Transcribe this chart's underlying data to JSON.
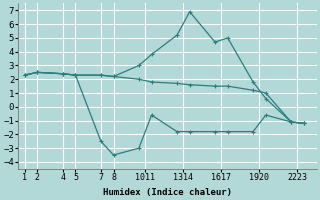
{
  "background_color": "#b2d8d8",
  "grid_color": "#ffffff",
  "line_color": "#2e7d7d",
  "xlabel": "Humidex (Indice chaleur)",
  "ylim": [
    -4.5,
    7.5
  ],
  "xlim": [
    0.5,
    24.0
  ],
  "yticks": [
    -4,
    -3,
    -2,
    -1,
    0,
    1,
    2,
    3,
    4,
    5,
    6,
    7
  ],
  "xtick_positions": [
    1,
    2,
    4,
    5,
    7,
    8,
    10.5,
    13.5,
    16.5,
    19.5,
    22.5
  ],
  "xtick_labels": [
    "1",
    "2",
    "4",
    "5",
    "7",
    "8",
    "1011",
    "1314",
    "1617",
    "1920",
    "2223"
  ],
  "line1_x": [
    1,
    2,
    4,
    5,
    7,
    8,
    10,
    11,
    13,
    14,
    16,
    17,
    19,
    20,
    22,
    23
  ],
  "line1_y": [
    2.3,
    2.5,
    2.4,
    2.3,
    2.3,
    2.2,
    2.0,
    1.8,
    1.7,
    1.6,
    1.5,
    1.5,
    1.2,
    1.0,
    -1.1,
    -1.2
  ],
  "line2_x": [
    1,
    2,
    4,
    5,
    7,
    8,
    10,
    11,
    13,
    14,
    16,
    17,
    19,
    20,
    22,
    23
  ],
  "line2_y": [
    2.3,
    2.5,
    2.4,
    2.3,
    2.3,
    2.2,
    3.0,
    3.8,
    5.2,
    6.9,
    4.7,
    5.0,
    1.8,
    0.6,
    -1.1,
    -1.2
  ],
  "line3_x": [
    1,
    2,
    4,
    5,
    7,
    8,
    10,
    11,
    13,
    14,
    16,
    17,
    19,
    20,
    22,
    23
  ],
  "line3_y": [
    2.3,
    2.5,
    2.4,
    2.3,
    -2.5,
    -3.5,
    -3.0,
    -0.6,
    -1.8,
    -1.8,
    -1.8,
    -1.8,
    -1.8,
    -0.6,
    -1.1,
    -1.2
  ]
}
